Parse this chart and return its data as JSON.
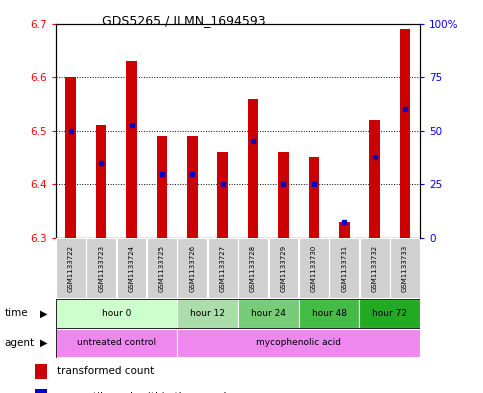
{
  "title": "GDS5265 / ILMN_1694593",
  "samples": [
    "GSM1133722",
    "GSM1133723",
    "GSM1133724",
    "GSM1133725",
    "GSM1133726",
    "GSM1133727",
    "GSM1133728",
    "GSM1133729",
    "GSM1133730",
    "GSM1133731",
    "GSM1133732",
    "GSM1133733"
  ],
  "bar_bottom": 6.3,
  "bar_tops": [
    6.6,
    6.51,
    6.63,
    6.49,
    6.49,
    6.46,
    6.56,
    6.46,
    6.45,
    6.33,
    6.52,
    6.69
  ],
  "percentile_values": [
    6.5,
    6.44,
    6.51,
    6.42,
    6.42,
    6.4,
    6.48,
    6.4,
    6.4,
    6.33,
    6.45,
    6.54
  ],
  "ylim": [
    6.3,
    6.7
  ],
  "yticks_left": [
    6.3,
    6.4,
    6.5,
    6.6,
    6.7
  ],
  "yticks_right": [
    0,
    25,
    50,
    75,
    100
  ],
  "bar_color": "#cc0000",
  "percentile_color": "#0000cc",
  "time_groups": [
    {
      "label": "hour 0",
      "cols": [
        0,
        1,
        2,
        3
      ],
      "color": "#ccffcc"
    },
    {
      "label": "hour 12",
      "cols": [
        4,
        5
      ],
      "color": "#aaddaa"
    },
    {
      "label": "hour 24",
      "cols": [
        6,
        7
      ],
      "color": "#77cc77"
    },
    {
      "label": "hour 48",
      "cols": [
        8,
        9
      ],
      "color": "#44bb44"
    },
    {
      "label": "hour 72",
      "cols": [
        10,
        11
      ],
      "color": "#22aa22"
    }
  ],
  "agent_groups": [
    {
      "label": "untreated control",
      "cols": [
        0,
        1,
        2,
        3
      ],
      "color": "#ee88ee"
    },
    {
      "label": "mycophenolic acid",
      "cols": [
        4,
        5,
        6,
        7,
        8,
        9,
        10,
        11
      ],
      "color": "#ee88ee"
    }
  ]
}
